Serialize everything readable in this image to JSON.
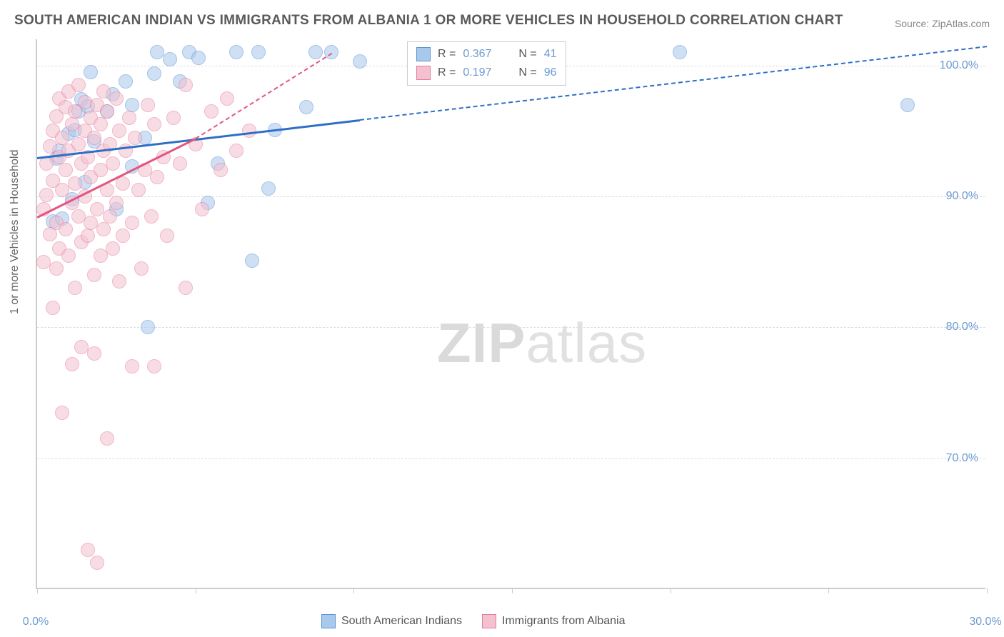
{
  "title": "SOUTH AMERICAN INDIAN VS IMMIGRANTS FROM ALBANIA 1 OR MORE VEHICLES IN HOUSEHOLD CORRELATION CHART",
  "source_prefix": "Source: ",
  "source_name": "ZipAtlas.com",
  "y_axis_label": "1 or more Vehicles in Household",
  "watermark_bold": "ZIP",
  "watermark_light": "atlas",
  "chart": {
    "type": "scatter",
    "background_color": "#ffffff",
    "grid_color": "#dddddd",
    "axis_color": "#cccccc",
    "xlim": [
      0,
      30
    ],
    "ylim": [
      60,
      102
    ],
    "x_ticks": [
      0,
      5,
      10,
      15,
      20,
      25,
      30
    ],
    "x_tick_labels": {
      "0": "0.0%",
      "30": "30.0%"
    },
    "y_ticks": [
      70,
      80,
      90,
      100
    ],
    "y_tick_labels": {
      "70": "70.0%",
      "80": "80.0%",
      "90": "90.0%",
      "100": "100.0%"
    },
    "label_fontsize": 16,
    "tick_color": "#6b9bd1",
    "marker_radius": 10,
    "marker_opacity": 0.55,
    "series": [
      {
        "name": "South American Indians",
        "color_fill": "#a8c8ec",
        "color_stroke": "#5a94d6",
        "R": "0.367",
        "N": "41",
        "trend": {
          "x1": 0,
          "y1": 93.0,
          "x2": 30,
          "y2": 101.5,
          "color": "#2e6fc6",
          "width": 2.5,
          "dashed_from_x": 10.2
        },
        "points": [
          [
            0.5,
            88.1
          ],
          [
            0.6,
            92.9
          ],
          [
            0.7,
            93.5
          ],
          [
            0.8,
            88.3
          ],
          [
            1.0,
            94.8
          ],
          [
            1.1,
            89.8
          ],
          [
            1.2,
            95.1
          ],
          [
            1.3,
            96.5
          ],
          [
            1.4,
            97.4
          ],
          [
            1.5,
            91.1
          ],
          [
            1.6,
            96.9
          ],
          [
            1.7,
            99.5
          ],
          [
            1.8,
            94.2
          ],
          [
            2.2,
            96.5
          ],
          [
            2.4,
            97.8
          ],
          [
            2.5,
            89.0
          ],
          [
            2.8,
            98.8
          ],
          [
            3.0,
            97.0
          ],
          [
            3.0,
            92.3
          ],
          [
            3.4,
            94.5
          ],
          [
            3.5,
            80.0
          ],
          [
            3.7,
            99.4
          ],
          [
            3.8,
            101.0
          ],
          [
            4.2,
            100.5
          ],
          [
            4.5,
            98.8
          ],
          [
            4.8,
            101.0
          ],
          [
            5.1,
            100.6
          ],
          [
            5.4,
            89.5
          ],
          [
            5.7,
            92.5
          ],
          [
            6.3,
            101.0
          ],
          [
            6.8,
            85.1
          ],
          [
            7.0,
            101.0
          ],
          [
            7.3,
            90.6
          ],
          [
            7.5,
            95.1
          ],
          [
            8.5,
            96.8
          ],
          [
            8.8,
            101.0
          ],
          [
            9.3,
            101.0
          ],
          [
            10.2,
            100.3
          ],
          [
            20.3,
            101.0
          ],
          [
            27.5,
            97.0
          ],
          [
            13.5,
            100.3
          ]
        ]
      },
      {
        "name": "Immigrants from Albania",
        "color_fill": "#f4c1cf",
        "color_stroke": "#e77ba0",
        "R": "0.197",
        "N": "96",
        "trend": {
          "x1": 0,
          "y1": 88.5,
          "x2": 5.0,
          "y2": 94.5,
          "color": "#e35582",
          "width": 2.5,
          "dashed_from_x": 5.0,
          "dashed_to": [
            9.3,
            101.0
          ]
        },
        "points": [
          [
            0.2,
            89.0
          ],
          [
            0.2,
            85.0
          ],
          [
            0.3,
            90.1
          ],
          [
            0.3,
            92.5
          ],
          [
            0.4,
            87.1
          ],
          [
            0.4,
            93.8
          ],
          [
            0.5,
            81.5
          ],
          [
            0.5,
            95.0
          ],
          [
            0.5,
            91.2
          ],
          [
            0.6,
            84.5
          ],
          [
            0.6,
            96.1
          ],
          [
            0.6,
            88.0
          ],
          [
            0.7,
            93.0
          ],
          [
            0.7,
            97.5
          ],
          [
            0.7,
            86.0
          ],
          [
            0.8,
            94.5
          ],
          [
            0.8,
            90.5
          ],
          [
            0.8,
            73.5
          ],
          [
            0.9,
            96.8
          ],
          [
            0.9,
            92.0
          ],
          [
            0.9,
            87.5
          ],
          [
            1.0,
            98.0
          ],
          [
            1.0,
            85.5
          ],
          [
            1.0,
            93.5
          ],
          [
            1.1,
            89.5
          ],
          [
            1.1,
            95.5
          ],
          [
            1.1,
            77.2
          ],
          [
            1.2,
            91.0
          ],
          [
            1.2,
            96.5
          ],
          [
            1.2,
            83.0
          ],
          [
            1.3,
            94.0
          ],
          [
            1.3,
            88.5
          ],
          [
            1.3,
            98.5
          ],
          [
            1.4,
            92.5
          ],
          [
            1.4,
            78.5
          ],
          [
            1.4,
            86.5
          ],
          [
            1.5,
            95.0
          ],
          [
            1.5,
            90.0
          ],
          [
            1.5,
            97.2
          ],
          [
            1.6,
            87.0
          ],
          [
            1.6,
            93.0
          ],
          [
            1.6,
            63.0
          ],
          [
            1.7,
            91.5
          ],
          [
            1.7,
            88.0
          ],
          [
            1.7,
            96.0
          ],
          [
            1.8,
            84.0
          ],
          [
            1.8,
            94.5
          ],
          [
            1.8,
            78.0
          ],
          [
            1.9,
            62.0
          ],
          [
            1.9,
            89.0
          ],
          [
            1.9,
            97.0
          ],
          [
            2.0,
            92.0
          ],
          [
            2.0,
            85.5
          ],
          [
            2.0,
            95.5
          ],
          [
            2.1,
            87.5
          ],
          [
            2.1,
            93.5
          ],
          [
            2.1,
            98.0
          ],
          [
            2.2,
            90.5
          ],
          [
            2.2,
            71.5
          ],
          [
            2.2,
            96.5
          ],
          [
            2.3,
            88.5
          ],
          [
            2.3,
            94.0
          ],
          [
            2.4,
            86.0
          ],
          [
            2.4,
            92.5
          ],
          [
            2.5,
            97.5
          ],
          [
            2.5,
            89.5
          ],
          [
            2.6,
            83.5
          ],
          [
            2.6,
            95.0
          ],
          [
            2.7,
            91.0
          ],
          [
            2.7,
            87.0
          ],
          [
            2.8,
            93.5
          ],
          [
            2.9,
            96.0
          ],
          [
            3.0,
            88.0
          ],
          [
            3.0,
            77.0
          ],
          [
            3.1,
            94.5
          ],
          [
            3.2,
            90.5
          ],
          [
            3.3,
            84.5
          ],
          [
            3.4,
            92.0
          ],
          [
            3.5,
            97.0
          ],
          [
            3.6,
            88.5
          ],
          [
            3.7,
            95.5
          ],
          [
            3.7,
            77.0
          ],
          [
            3.8,
            91.5
          ],
          [
            4.0,
            93.0
          ],
          [
            4.1,
            87.0
          ],
          [
            4.3,
            96.0
          ],
          [
            4.5,
            92.5
          ],
          [
            4.7,
            98.5
          ],
          [
            4.7,
            83.0
          ],
          [
            5.0,
            94.0
          ],
          [
            5.2,
            89.0
          ],
          [
            5.5,
            96.5
          ],
          [
            5.8,
            92.0
          ],
          [
            6.0,
            97.5
          ],
          [
            6.3,
            93.5
          ],
          [
            6.7,
            95.0
          ]
        ]
      }
    ]
  },
  "legend_top": {
    "r_label": "R =",
    "n_label": "N ="
  },
  "legend_bottom": [
    {
      "label": "South American Indians",
      "fill": "#a8c8ec",
      "stroke": "#5a94d6"
    },
    {
      "label": "Immigrants from Albania",
      "fill": "#f4c1cf",
      "stroke": "#e77ba0"
    }
  ]
}
